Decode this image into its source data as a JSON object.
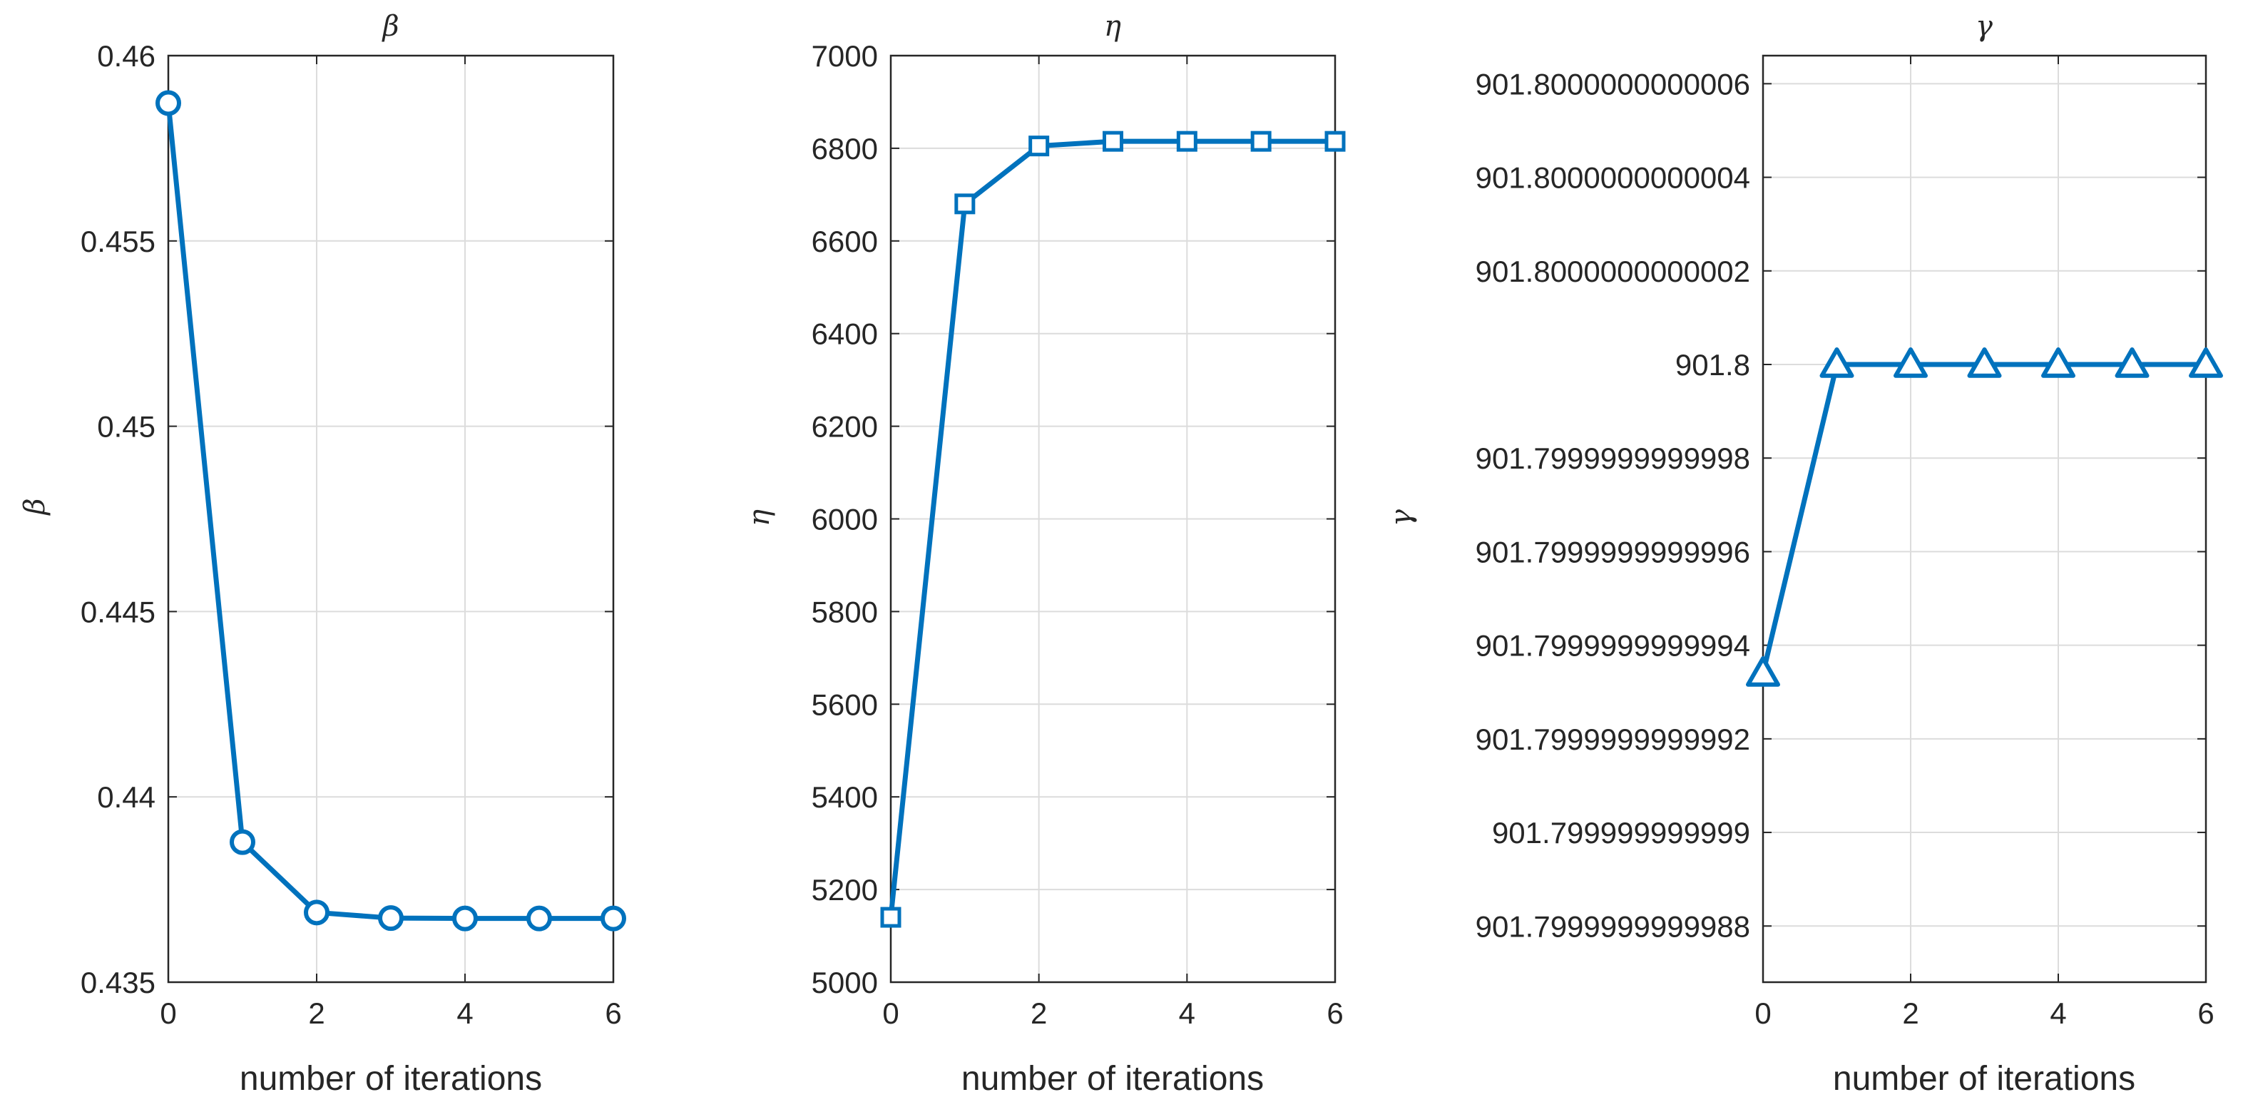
{
  "chart_data": [
    {
      "type": "line",
      "title": "β",
      "xlabel": "number of iterations",
      "ylabel": "β",
      "grid": true,
      "marker": "circle",
      "color": "#0072BD",
      "x": [
        0,
        1,
        2,
        3,
        4,
        5,
        6
      ],
      "xlim": [
        0,
        6
      ],
      "xticks": [
        "0",
        "2",
        "4",
        "6"
      ],
      "xtick_values": [
        0,
        2,
        4,
        6
      ],
      "ylim": [
        0.435,
        0.46
      ],
      "yticks": [
        "0.435",
        "0.44",
        "0.445",
        "0.45",
        "0.455",
        "0.46"
      ],
      "ytick_values": [
        0.435,
        0.44,
        0.445,
        0.45,
        0.455,
        0.46
      ],
      "series": [
        {
          "values": [
            0.45872,
            0.43878,
            0.43688,
            0.43673,
            0.43672,
            0.43672,
            0.43672
          ]
        }
      ]
    },
    {
      "type": "line",
      "title": "η",
      "xlabel": "number of iterations",
      "ylabel": "η",
      "grid": true,
      "marker": "square",
      "color": "#0072BD",
      "x": [
        0,
        1,
        2,
        3,
        4,
        5,
        6
      ],
      "xlim": [
        0,
        6
      ],
      "xticks": [
        "0",
        "2",
        "4",
        "6"
      ],
      "xtick_values": [
        0,
        2,
        4,
        6
      ],
      "ylim": [
        5000,
        7000
      ],
      "yticks": [
        "5000",
        "5200",
        "5400",
        "5600",
        "5800",
        "6000",
        "6200",
        "6400",
        "6600",
        "6800",
        "7000"
      ],
      "ytick_values": [
        5000,
        5200,
        5400,
        5600,
        5800,
        6000,
        6200,
        6400,
        6600,
        6800,
        7000
      ],
      "series": [
        {
          "values": [
            5140,
            6680,
            6805,
            6815,
            6815,
            6815,
            6815
          ]
        }
      ]
    },
    {
      "type": "line",
      "title": "γ",
      "xlabel": "number of iterations",
      "ylabel": "γ",
      "grid": true,
      "marker": "triangle",
      "color": "#0072BD",
      "x": [
        0,
        1,
        2,
        3,
        4,
        5,
        6
      ],
      "xlim": [
        0,
        6
      ],
      "xticks": [
        "0",
        "2",
        "4",
        "6"
      ],
      "xtick_values": [
        0,
        2,
        4,
        6
      ],
      "y_offset": 901.8,
      "ylim_offset_e11": [
        -13.2,
        6.6
      ],
      "yticks": [
        "901.7999999999988",
        "901.799999999999",
        "901.7999999999992",
        "901.7999999999994",
        "901.7999999999996",
        "901.7999999999998",
        "901.8",
        "901.8000000000002",
        "901.8000000000004",
        "901.8000000000006"
      ],
      "ytick_offsets_e11": [
        -12,
        -10,
        -8,
        -6,
        -4,
        -2,
        0,
        2,
        4,
        6
      ],
      "series": [
        {
          "values": [
            901.7999999999993,
            901.8,
            901.8,
            901.8,
            901.8,
            901.8,
            901.8
          ],
          "offsets_e11": [
            -6.6,
            0,
            0,
            0,
            0,
            0,
            0
          ]
        }
      ]
    }
  ]
}
